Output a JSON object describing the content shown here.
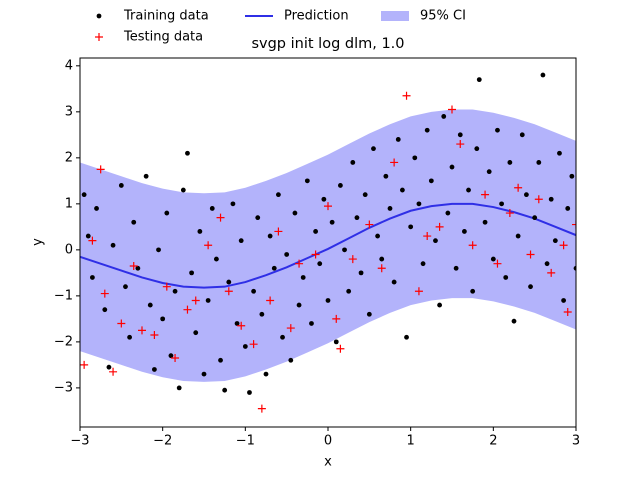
{
  "chart_data": {
    "type": "line",
    "title": "svgp init log dlm, 1.0",
    "xlabel": "x",
    "ylabel": "y",
    "xlim": [
      -3,
      3
    ],
    "ylim": [
      -3.85,
      4.17
    ],
    "xticks": [
      {
        "value": -3,
        "label": "−3"
      },
      {
        "value": -2,
        "label": "−2"
      },
      {
        "value": -1,
        "label": "−1"
      },
      0,
      1,
      2,
      3
    ],
    "yticks": [
      {
        "value": -3,
        "label": "−3"
      },
      {
        "value": -2,
        "label": "−2"
      },
      {
        "value": -1,
        "label": "−1"
      },
      0,
      1,
      2,
      3,
      4
    ],
    "legend": "top",
    "series": [
      {
        "name": "Training data",
        "kind": "scatter",
        "marker": "dot",
        "color": "#000000",
        "x": [
          -2.95,
          -2.9,
          -2.85,
          -2.8,
          -2.7,
          -2.65,
          -2.6,
          -2.5,
          -2.45,
          -2.4,
          -2.35,
          -2.3,
          -2.2,
          -2.15,
          -2.1,
          -2.05,
          -2.0,
          -1.95,
          -1.9,
          -1.85,
          -1.8,
          -1.75,
          -1.7,
          -1.65,
          -1.6,
          -1.55,
          -1.5,
          -1.45,
          -1.4,
          -1.35,
          -1.3,
          -1.25,
          -1.2,
          -1.15,
          -1.1,
          -1.05,
          -1.0,
          -0.95,
          -0.9,
          -0.85,
          -0.8,
          -0.75,
          -0.7,
          -0.65,
          -0.6,
          -0.55,
          -0.5,
          -0.45,
          -0.4,
          -0.35,
          -0.3,
          -0.25,
          -0.2,
          -0.15,
          -0.1,
          -0.05,
          0.0,
          0.05,
          0.1,
          0.15,
          0.2,
          0.25,
          0.3,
          0.35,
          0.4,
          0.45,
          0.5,
          0.55,
          0.6,
          0.65,
          0.7,
          0.75,
          0.8,
          0.85,
          0.9,
          0.95,
          1.0,
          1.05,
          1.1,
          1.15,
          1.2,
          1.25,
          1.3,
          1.35,
          1.4,
          1.45,
          1.5,
          1.55,
          1.6,
          1.65,
          1.7,
          1.75,
          1.8,
          1.83,
          1.9,
          1.95,
          2.0,
          2.05,
          2.1,
          2.15,
          2.2,
          2.25,
          2.3,
          2.35,
          2.4,
          2.45,
          2.5,
          2.55,
          2.6,
          2.65,
          2.7,
          2.75,
          2.8,
          2.85,
          2.9,
          2.95,
          3.0
        ],
        "y": [
          1.2,
          0.3,
          -0.6,
          0.9,
          -1.3,
          -2.55,
          0.1,
          1.4,
          -0.8,
          -1.9,
          0.6,
          -0.4,
          1.6,
          -1.2,
          -2.6,
          0.0,
          -1.5,
          0.8,
          -2.3,
          -0.9,
          -3.0,
          1.3,
          2.1,
          -0.5,
          -1.8,
          0.4,
          -2.7,
          -1.1,
          0.9,
          -0.2,
          -2.4,
          -3.05,
          -0.7,
          1.0,
          -1.6,
          0.2,
          -2.1,
          -3.1,
          -0.9,
          0.7,
          -1.4,
          -2.7,
          0.3,
          -0.4,
          1.2,
          -1.9,
          -0.1,
          -2.4,
          0.8,
          -1.2,
          -0.6,
          1.5,
          -1.6,
          0.4,
          -0.3,
          1.1,
          -1.1,
          0.6,
          -2.0,
          1.4,
          0.0,
          -0.9,
          1.9,
          0.7,
          -0.5,
          1.2,
          -1.4,
          2.2,
          0.3,
          -0.2,
          1.6,
          0.9,
          -0.7,
          2.4,
          1.3,
          -1.9,
          0.5,
          2.0,
          1.0,
          -0.3,
          2.6,
          1.5,
          0.2,
          -1.2,
          2.9,
          0.8,
          1.8,
          -0.4,
          2.5,
          0.4,
          1.3,
          -0.9,
          2.2,
          3.7,
          0.6,
          1.7,
          -0.2,
          2.6,
          1.0,
          -0.6,
          1.9,
          -1.55,
          0.3,
          2.5,
          1.2,
          -0.8,
          0.7,
          1.9,
          3.8,
          -0.3,
          1.1,
          0.2,
          2.1,
          -1.1,
          0.9,
          1.6,
          -0.4
        ]
      },
      {
        "name": "Testing data",
        "kind": "scatter",
        "marker": "plus",
        "color": "#ff0000",
        "x": [
          -2.95,
          -2.85,
          -2.75,
          -2.7,
          -2.6,
          -2.5,
          -2.35,
          -2.25,
          -2.1,
          -1.95,
          -1.85,
          -1.7,
          -1.6,
          -1.45,
          -1.3,
          -1.2,
          -1.05,
          -0.9,
          -0.8,
          -0.7,
          -0.6,
          -0.45,
          -0.35,
          -0.15,
          0.0,
          0.1,
          0.15,
          0.3,
          0.5,
          0.65,
          0.8,
          0.95,
          1.1,
          1.2,
          1.35,
          1.5,
          1.6,
          1.75,
          1.9,
          2.05,
          2.2,
          2.3,
          2.45,
          2.55,
          2.7,
          2.85,
          2.9,
          3.0
        ],
        "y": [
          -2.5,
          0.2,
          1.75,
          -0.95,
          -2.65,
          -1.6,
          -0.35,
          -1.75,
          -1.85,
          -0.8,
          -2.35,
          -1.3,
          -1.1,
          0.1,
          0.7,
          -0.9,
          -1.65,
          -2.05,
          -3.45,
          -1.1,
          0.4,
          -1.7,
          -0.3,
          -0.1,
          0.95,
          -1.5,
          -2.15,
          -0.2,
          0.55,
          -0.4,
          1.9,
          3.35,
          -0.9,
          0.3,
          0.5,
          3.05,
          2.3,
          0.1,
          1.2,
          -0.3,
          0.8,
          1.35,
          -0.1,
          1.1,
          -0.5,
          0.1,
          -1.35,
          0.55
        ]
      },
      {
        "name": "Prediction",
        "kind": "line",
        "color": "#2f2fe6",
        "x": [
          -3,
          -2.75,
          -2.5,
          -2.25,
          -2,
          -1.75,
          -1.5,
          -1.25,
          -1,
          -0.75,
          -0.5,
          -0.25,
          0,
          0.25,
          0.5,
          0.75,
          1,
          1.25,
          1.5,
          1.75,
          2,
          2.25,
          2.5,
          2.75,
          3
        ],
        "y": [
          -0.15,
          -0.3,
          -0.45,
          -0.6,
          -0.72,
          -0.8,
          -0.82,
          -0.8,
          -0.7,
          -0.55,
          -0.38,
          -0.18,
          0.02,
          0.25,
          0.48,
          0.68,
          0.85,
          0.95,
          1.0,
          1.0,
          0.93,
          0.82,
          0.68,
          0.5,
          0.32
        ]
      },
      {
        "name": "95% CI",
        "kind": "band",
        "color": "#b3b3fb",
        "x": [
          -3,
          -2.75,
          -2.5,
          -2.25,
          -2,
          -1.75,
          -1.5,
          -1.25,
          -1,
          -0.75,
          -0.5,
          -0.25,
          0,
          0.25,
          0.5,
          0.75,
          1,
          1.25,
          1.5,
          1.75,
          2,
          2.25,
          2.5,
          2.75,
          3
        ],
        "upper": [
          1.9,
          1.75,
          1.6,
          1.45,
          1.33,
          1.25,
          1.23,
          1.25,
          1.35,
          1.5,
          1.67,
          1.87,
          2.07,
          2.3,
          2.53,
          2.73,
          2.9,
          3.0,
          3.05,
          3.05,
          2.98,
          2.87,
          2.73,
          2.55,
          2.37
        ],
        "lower": [
          -2.2,
          -2.35,
          -2.5,
          -2.65,
          -2.77,
          -2.85,
          -2.87,
          -2.85,
          -2.75,
          -2.6,
          -2.43,
          -2.23,
          -2.03,
          -1.8,
          -1.57,
          -1.37,
          -1.2,
          -1.1,
          -1.05,
          -1.05,
          -1.12,
          -1.23,
          -1.37,
          -1.55,
          -1.73
        ]
      }
    ]
  }
}
